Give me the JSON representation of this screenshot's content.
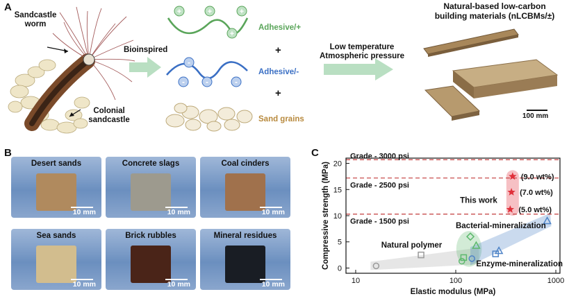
{
  "panel_a": {
    "letter": "A",
    "worm_label_1": "Sandcastle",
    "worm_label_2": "worm",
    "colonial_label_1": "Colonial",
    "colonial_label_2": "sandcastle",
    "bioinspired": "Bioinspired",
    "adhesive_pos": "Adhesive/+",
    "adhesive_neg": "Adhesive/-",
    "plus": "+",
    "sand_grains": "Sand grains",
    "process_1": "Low temperature",
    "process_2": "Atmospheric pressure",
    "product_1": "Natural-based low-carbon",
    "product_2": "building materials (nLCBMs/±)",
    "scale": "100 mm",
    "colors": {
      "positive": "#5aa55a",
      "negative": "#3a6fc4",
      "sand": "#b88a3e",
      "arrow": "#b9dfc2"
    }
  },
  "panel_b": {
    "letter": "B",
    "scale": "10 mm",
    "samples": [
      {
        "name": "Desert sands",
        "color": "#b08a5e"
      },
      {
        "name": "Concrete slags",
        "color": "#9d9a8e"
      },
      {
        "name": "Coal cinders",
        "color": "#a0714c"
      },
      {
        "name": "Sea sands",
        "color": "#d2bd8e"
      },
      {
        "name": "Brick rubbles",
        "color": "#4a2418"
      },
      {
        "name": "Mineral residues",
        "color": "#191d24"
      }
    ]
  },
  "panel_c": {
    "letter": "C",
    "chart_data": {
      "type": "scatter",
      "xlabel": "Elastic modulus (MPa)",
      "ylabel": "Compressive strength (MPa)",
      "x_scale": "log",
      "xlim": [
        8,
        1100
      ],
      "ylim": [
        -1,
        21
      ],
      "xticks": [
        10,
        100,
        1000
      ],
      "xtick_labels": [
        "10",
        "100",
        "1000"
      ],
      "yticks": [
        0,
        5,
        10,
        15,
        20
      ],
      "grades": [
        {
          "label": "Grade - 3000 psi",
          "y": 20.7
        },
        {
          "label": "Grade - 2500 psi",
          "y": 17.2
        },
        {
          "label": "Grade - 1500 psi",
          "y": 10.3
        }
      ],
      "this_work": {
        "label": "This work",
        "color": "#e0303a",
        "points": [
          {
            "x": 370,
            "y": 17.5,
            "label": "(9.0 wt%)"
          },
          {
            "x": 360,
            "y": 14.5,
            "label": "(7.0 wt%)"
          },
          {
            "x": 350,
            "y": 11.2,
            "label": "(5.0 wt%)"
          }
        ]
      },
      "groups": [
        {
          "label": "Natural polymer",
          "color": "#9a9a9a",
          "points": [
            {
              "x": 16,
              "y": 0.4,
              "marker": "circle"
            },
            {
              "x": 45,
              "y": 2.5,
              "marker": "square"
            }
          ]
        },
        {
          "label": "Bacterial-mineralization",
          "color": "#5cb86c",
          "points": [
            {
              "x": 140,
              "y": 6.0,
              "marker": "diamond"
            },
            {
              "x": 160,
              "y": 4.3,
              "marker": "triangle"
            },
            {
              "x": 120,
              "y": 2.0,
              "marker": "square"
            },
            {
              "x": 115,
              "y": 1.3,
              "marker": "circle"
            }
          ]
        },
        {
          "label": "Enzyme-mineralization",
          "color": "#4f84c7",
          "points": [
            {
              "x": 820,
              "y": 9.0,
              "marker": "triangle"
            },
            {
              "x": 270,
              "y": 3.3,
              "marker": "triangle"
            },
            {
              "x": 250,
              "y": 2.7,
              "marker": "square"
            },
            {
              "x": 145,
              "y": 1.8,
              "marker": "circle"
            }
          ]
        }
      ]
    }
  }
}
